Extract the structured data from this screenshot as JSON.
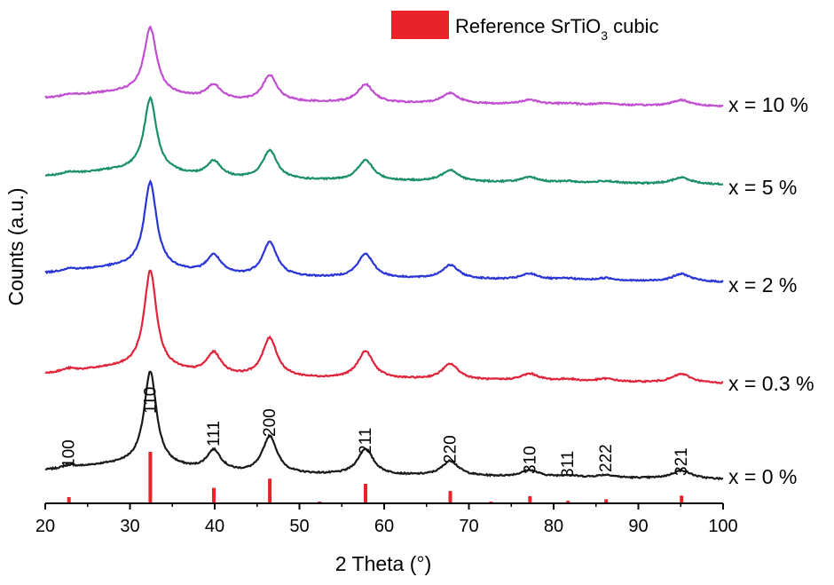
{
  "chart_data": {
    "type": "line",
    "title": "",
    "xlabel": "2 Theta (°)",
    "ylabel": "Counts (a.u.)",
    "xlim": [
      20,
      100
    ],
    "x_ticks": [
      "20",
      "30",
      "40",
      "50",
      "60",
      "70",
      "80",
      "90",
      "100"
    ],
    "y_ticks_shown": false,
    "legend": {
      "label_prefix": "Reference SrTiO",
      "label_subscript": "3",
      "label_suffix": " cubic",
      "color": "#e8232a",
      "position": "top-right"
    },
    "peak_labels": [
      {
        "hkl": "100",
        "x": 22.8
      },
      {
        "hkl": "110",
        "x": 32.4
      },
      {
        "hkl": "111",
        "x": 39.9
      },
      {
        "hkl": "200",
        "x": 46.5
      },
      {
        "hkl": "211",
        "x": 57.8
      },
      {
        "hkl": "220",
        "x": 67.8
      },
      {
        "hkl": "310",
        "x": 77.2
      },
      {
        "hkl": "311",
        "x": 81.7
      },
      {
        "hkl": "222",
        "x": 86.2
      },
      {
        "hkl": "321",
        "x": 95.1
      }
    ],
    "reference_pattern": [
      {
        "x": 22.8,
        "intensity": 12
      },
      {
        "x": 32.4,
        "intensity": 100
      },
      {
        "x": 39.9,
        "intensity": 30
      },
      {
        "x": 46.5,
        "intensity": 48
      },
      {
        "x": 52.4,
        "intensity": 2
      },
      {
        "x": 57.8,
        "intensity": 38
      },
      {
        "x": 67.8,
        "intensity": 24
      },
      {
        "x": 72.6,
        "intensity": 1
      },
      {
        "x": 77.2,
        "intensity": 14
      },
      {
        "x": 81.7,
        "intensity": 5
      },
      {
        "x": 86.2,
        "intensity": 8
      },
      {
        "x": 95.1,
        "intensity": 15
      }
    ],
    "peaks": [
      {
        "x": 22.8,
        "width": 0.6,
        "rel": 0.03
      },
      {
        "x": 32.4,
        "width": 0.55,
        "rel": 1.0
      },
      {
        "x": 39.9,
        "width": 0.65,
        "rel": 0.22
      },
      {
        "x": 46.5,
        "width": 0.65,
        "rel": 0.4
      },
      {
        "x": 57.8,
        "width": 0.7,
        "rel": 0.28
      },
      {
        "x": 67.8,
        "width": 0.75,
        "rel": 0.16
      },
      {
        "x": 77.2,
        "width": 0.8,
        "rel": 0.07
      },
      {
        "x": 81.7,
        "width": 0.8,
        "rel": 0.02
      },
      {
        "x": 86.2,
        "width": 0.8,
        "rel": 0.03
      },
      {
        "x": 95.1,
        "width": 0.85,
        "rel": 0.09
      }
    ],
    "series": [
      {
        "name": "x = 0 %",
        "color": "#1a1a1a",
        "offset": 0,
        "scale": 1.0,
        "baseline_slope": 1.0
      },
      {
        "name": "x = 0.3 %",
        "color": "#e0243a",
        "offset": 1,
        "scale": 1.05,
        "baseline_slope": 1.1
      },
      {
        "name": "x = 2 %",
        "color": "#2a35d6",
        "offset": 2,
        "scale": 0.92,
        "baseline_slope": 1.0
      },
      {
        "name": "x = 5 %",
        "color": "#1a8f6a",
        "offset": 3,
        "scale": 0.78,
        "baseline_slope": 0.9
      },
      {
        "name": "x = 10 %",
        "color": "#c04fd0",
        "offset": 4,
        "scale": 0.7,
        "baseline_slope": 0.9
      }
    ]
  }
}
